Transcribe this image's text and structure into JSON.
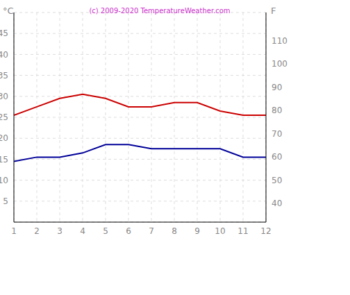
{
  "chart_data": {
    "type": "line",
    "annotations": [
      "(c) 2009-2020 TemperatureWeather.com"
    ],
    "y_label": "°C",
    "y2_label": "F",
    "x": [
      1,
      2,
      3,
      4,
      5,
      6,
      7,
      8,
      9,
      10,
      11,
      12
    ],
    "xlim": [
      1,
      12
    ],
    "xticks": [
      1,
      2,
      3,
      4,
      5,
      6,
      7,
      8,
      9,
      10,
      11,
      12
    ],
    "ylim": [
      0,
      50
    ],
    "yticks": [
      5,
      10,
      15,
      20,
      25,
      30,
      35,
      40,
      45
    ],
    "y2lim": [
      32,
      122
    ],
    "y2ticks": [
      40,
      50,
      60,
      70,
      80,
      90,
      100,
      110
    ],
    "grid": true,
    "series": [
      {
        "color": "#cc0000",
        "values": [
          25.5,
          27.5,
          29.5,
          30.5,
          29.5,
          27.5,
          27.5,
          28.5,
          28.5,
          26.5,
          25.5,
          25.5
        ]
      },
      {
        "color": "#000099",
        "values": [
          14.5,
          15.5,
          15.5,
          16.5,
          18.5,
          18.5,
          17.5,
          17.5,
          17.5,
          17.5,
          15.5,
          15.5
        ]
      }
    ]
  }
}
